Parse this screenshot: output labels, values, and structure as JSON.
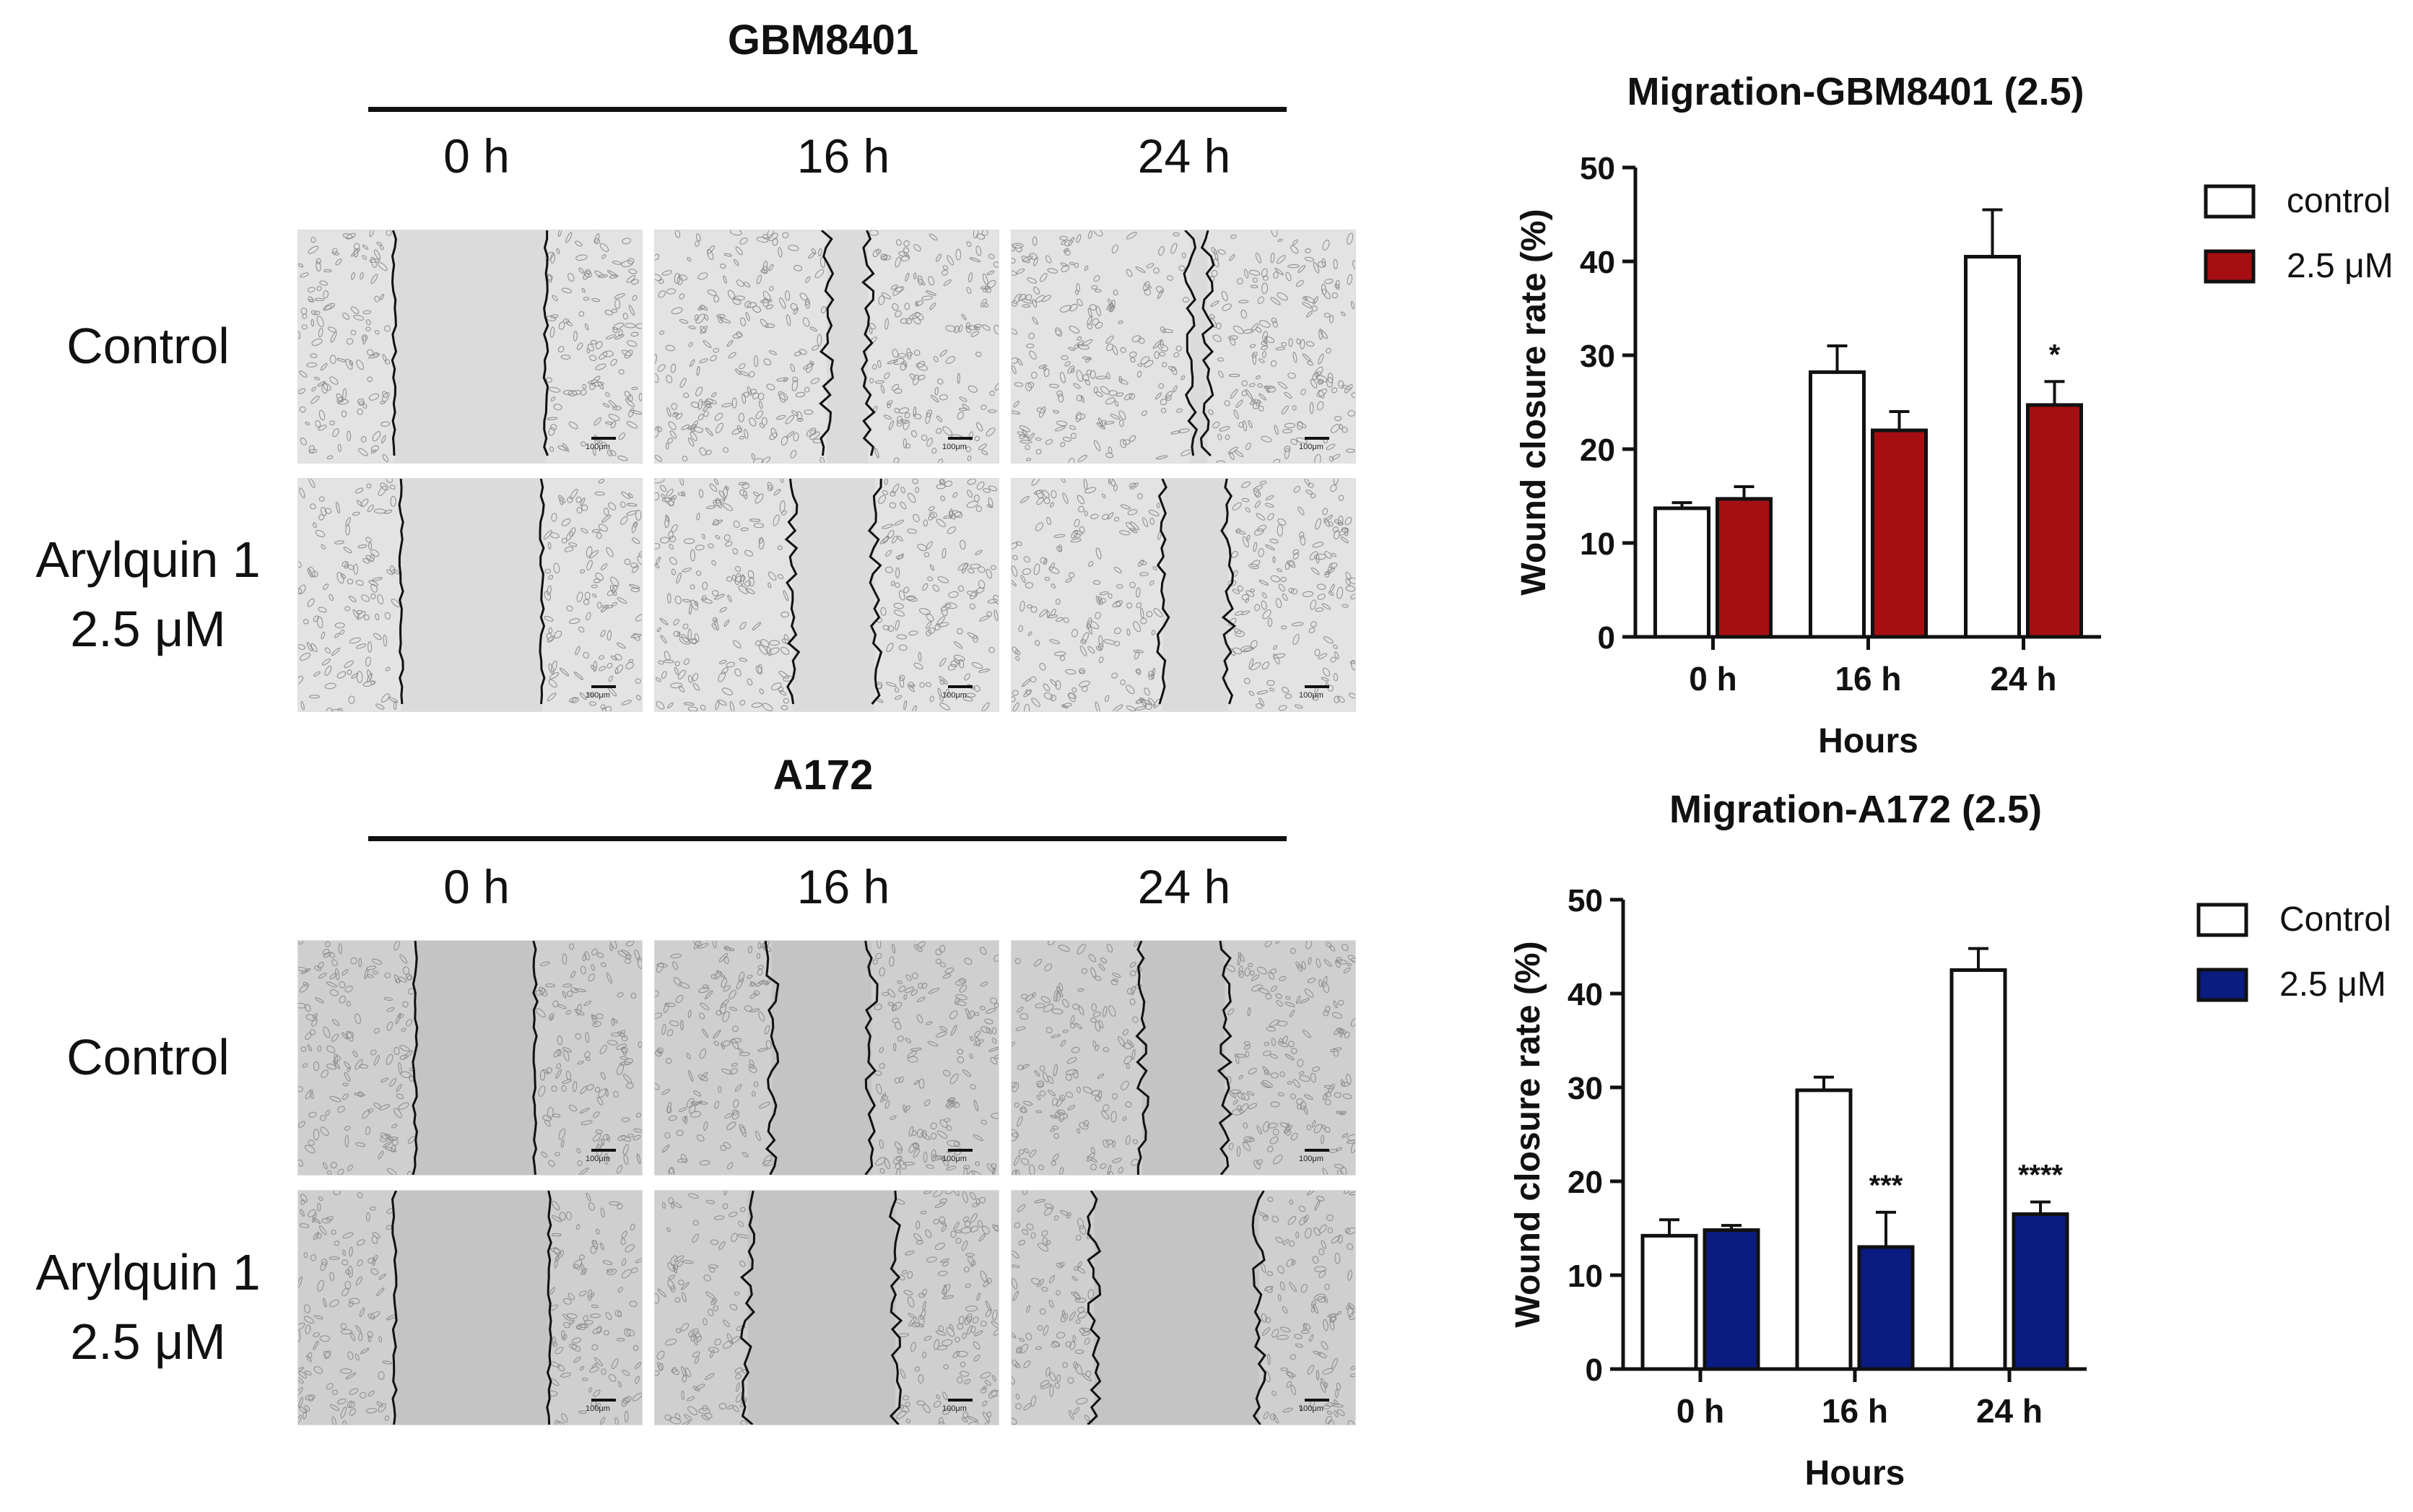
{
  "left": {
    "panels": [
      {
        "title": "GBM8401",
        "timepoints": [
          "0 h",
          "16 h",
          "24 h"
        ],
        "rows": [
          {
            "lines": [
              "Control"
            ]
          },
          {
            "lines": [
              "Arylquin 1",
              "2.5 μM"
            ]
          }
        ],
        "scale_label": "100μm"
      },
      {
        "title": "A172",
        "timepoints": [
          "0 h",
          "16 h",
          "24 h"
        ],
        "rows": [
          {
            "lines": [
              "Control"
            ]
          },
          {
            "lines": [
              "Arylquin 1",
              "2.5 μM"
            ]
          }
        ],
        "scale_label": "100μm"
      }
    ]
  },
  "chart_data": [
    {
      "type": "bar",
      "title": "Migration-GBM8401 (2.5)",
      "xlabel": "Hours",
      "ylabel": "Wound closure rate (%)",
      "categories": [
        "0 h",
        "16 h",
        "24 h"
      ],
      "ylim": [
        0,
        50
      ],
      "yticks": [
        0,
        10,
        20,
        30,
        40,
        50
      ],
      "legend_position": "top-right",
      "series": [
        {
          "name": "control",
          "color": "#ffffff",
          "values": [
            13.7,
            28.2,
            40.5
          ],
          "errors": [
            0.6,
            2.8,
            5.0
          ],
          "annotations": [
            "",
            "",
            ""
          ]
        },
        {
          "name": "2.5 μM",
          "color": "#a50f12",
          "values": [
            14.7,
            22.0,
            24.7
          ],
          "errors": [
            1.3,
            2.0,
            2.5
          ],
          "annotations": [
            "",
            "",
            "*"
          ]
        }
      ]
    },
    {
      "type": "bar",
      "title": "Migration-A172 (2.5)",
      "xlabel": "Hours",
      "ylabel": "Wound closure rate (%)",
      "categories": [
        "0 h",
        "16 h",
        "24 h"
      ],
      "ylim": [
        0,
        50
      ],
      "yticks": [
        0,
        10,
        20,
        30,
        40,
        50
      ],
      "legend_position": "top-right",
      "series": [
        {
          "name": "Control",
          "color": "#ffffff",
          "values": [
            14.2,
            29.7,
            42.5
          ],
          "errors": [
            1.7,
            1.4,
            2.3
          ],
          "annotations": [
            "",
            "",
            ""
          ]
        },
        {
          "name": "2.5 μM",
          "color": "#0a1c80",
          "values": [
            14.8,
            13.0,
            16.5
          ],
          "errors": [
            0.5,
            3.7,
            1.3
          ],
          "annotations": [
            "",
            "***",
            "****"
          ]
        }
      ]
    }
  ]
}
